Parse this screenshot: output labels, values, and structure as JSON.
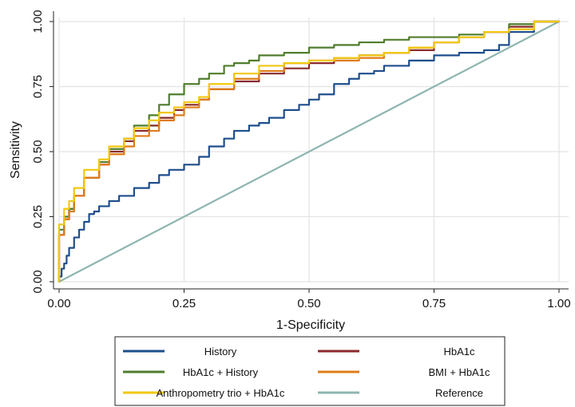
{
  "chart_data": {
    "type": "line",
    "xlabel": "1-Specificity",
    "ylabel": "Sensitivity",
    "xlim": [
      0,
      1
    ],
    "ylim": [
      0,
      1
    ],
    "grid": true,
    "legend_position": "bottom",
    "x_ticks": [
      "0.00",
      "0.25",
      "0.50",
      "0.75",
      "1.00"
    ],
    "y_ticks": [
      "0.00",
      "0.25",
      "0.50",
      "0.75",
      "1.00"
    ],
    "series": [
      {
        "name": "History",
        "color": "#1f4e8c",
        "x": [
          0,
          0.005,
          0.01,
          0.015,
          0.02,
          0.03,
          0.04,
          0.05,
          0.06,
          0.07,
          0.08,
          0.1,
          0.12,
          0.15,
          0.18,
          0.2,
          0.22,
          0.25,
          0.28,
          0.3,
          0.33,
          0.35,
          0.38,
          0.4,
          0.42,
          0.45,
          0.48,
          0.5,
          0.52,
          0.55,
          0.58,
          0.6,
          0.63,
          0.65,
          0.7,
          0.75,
          0.8,
          0.85,
          0.88,
          0.9,
          0.95,
          1.0
        ],
        "y": [
          0,
          0.02,
          0.05,
          0.07,
          0.1,
          0.13,
          0.17,
          0.2,
          0.23,
          0.26,
          0.27,
          0.29,
          0.31,
          0.33,
          0.36,
          0.38,
          0.41,
          0.43,
          0.45,
          0.48,
          0.52,
          0.55,
          0.58,
          0.6,
          0.61,
          0.63,
          0.66,
          0.68,
          0.7,
          0.72,
          0.76,
          0.78,
          0.8,
          0.81,
          0.83,
          0.85,
          0.87,
          0.88,
          0.89,
          0.91,
          0.96,
          1.0
        ]
      },
      {
        "name": "HbA1c",
        "color": "#8b2a2a",
        "x": [
          0,
          0.01,
          0.02,
          0.03,
          0.05,
          0.08,
          0.1,
          0.13,
          0.15,
          0.18,
          0.2,
          0.23,
          0.25,
          0.28,
          0.3,
          0.35,
          0.4,
          0.45,
          0.5,
          0.55,
          0.6,
          0.65,
          0.7,
          0.75,
          0.8,
          0.85,
          0.9,
          0.95,
          1.0
        ],
        "y": [
          0,
          0.18,
          0.24,
          0.28,
          0.33,
          0.4,
          0.45,
          0.5,
          0.54,
          0.58,
          0.6,
          0.63,
          0.66,
          0.68,
          0.7,
          0.74,
          0.77,
          0.8,
          0.82,
          0.84,
          0.86,
          0.87,
          0.88,
          0.89,
          0.92,
          0.94,
          0.96,
          0.98,
          1.0
        ]
      },
      {
        "name": "HbA1c + History",
        "color": "#4f7d2c",
        "x": [
          0,
          0.01,
          0.02,
          0.03,
          0.05,
          0.08,
          0.1,
          0.13,
          0.15,
          0.18,
          0.2,
          0.22,
          0.25,
          0.28,
          0.3,
          0.33,
          0.35,
          0.38,
          0.4,
          0.45,
          0.5,
          0.55,
          0.6,
          0.65,
          0.7,
          0.75,
          0.8,
          0.85,
          0.9,
          0.95,
          1.0
        ],
        "y": [
          0,
          0.2,
          0.25,
          0.28,
          0.33,
          0.4,
          0.46,
          0.51,
          0.55,
          0.6,
          0.64,
          0.68,
          0.72,
          0.76,
          0.78,
          0.8,
          0.83,
          0.84,
          0.85,
          0.87,
          0.88,
          0.9,
          0.91,
          0.92,
          0.93,
          0.94,
          0.94,
          0.95,
          0.96,
          0.99,
          1.0
        ]
      },
      {
        "name": "BMI + HbA1c",
        "color": "#e07b1a",
        "x": [
          0,
          0.01,
          0.02,
          0.03,
          0.05,
          0.08,
          0.1,
          0.13,
          0.15,
          0.18,
          0.2,
          0.23,
          0.25,
          0.28,
          0.3,
          0.35,
          0.4,
          0.45,
          0.5,
          0.55,
          0.6,
          0.65,
          0.7,
          0.75,
          0.8,
          0.85,
          0.9,
          0.95,
          1.0
        ],
        "y": [
          0,
          0.18,
          0.24,
          0.27,
          0.33,
          0.4,
          0.45,
          0.49,
          0.52,
          0.56,
          0.58,
          0.62,
          0.64,
          0.67,
          0.7,
          0.74,
          0.78,
          0.81,
          0.84,
          0.85,
          0.85,
          0.86,
          0.88,
          0.9,
          0.92,
          0.94,
          0.96,
          0.97,
          1.0
        ]
      },
      {
        "name": "Anthropometry trio + HbA1c",
        "color": "#f2c80f",
        "x": [
          0,
          0.01,
          0.02,
          0.03,
          0.05,
          0.08,
          0.1,
          0.13,
          0.15,
          0.18,
          0.2,
          0.23,
          0.25,
          0.28,
          0.3,
          0.35,
          0.4,
          0.45,
          0.5,
          0.55,
          0.6,
          0.65,
          0.7,
          0.75,
          0.8,
          0.85,
          0.9,
          0.95,
          1.0
        ],
        "y": [
          0,
          0.22,
          0.28,
          0.31,
          0.36,
          0.43,
          0.47,
          0.52,
          0.55,
          0.59,
          0.62,
          0.65,
          0.67,
          0.69,
          0.71,
          0.76,
          0.8,
          0.83,
          0.84,
          0.85,
          0.86,
          0.87,
          0.88,
          0.9,
          0.92,
          0.94,
          0.96,
          0.97,
          1.0
        ]
      },
      {
        "name": "Reference",
        "color": "#8fb5b0",
        "x": [
          0,
          1
        ],
        "y": [
          0,
          1
        ]
      }
    ]
  }
}
